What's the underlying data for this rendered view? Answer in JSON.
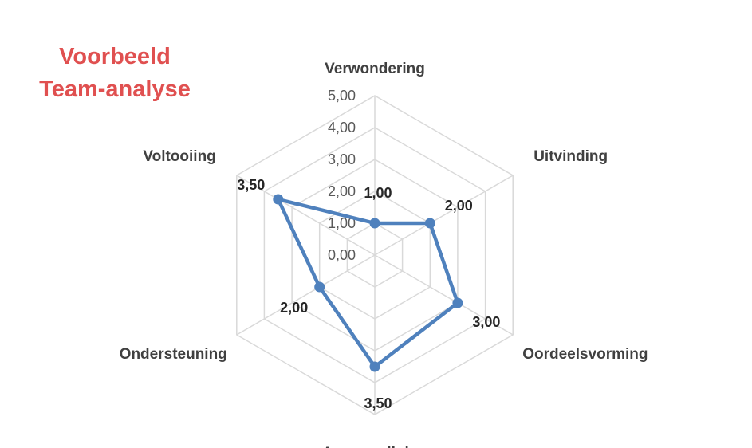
{
  "page": {
    "title_lines": [
      "Voorbeeld",
      "Team-analyse"
    ],
    "title_color": "#e05050"
  },
  "chart_data": {
    "type": "radar",
    "categories": [
      "Verwondering",
      "Uitvinding",
      "Oordeelsvorming",
      "Aanmoediging",
      "Ondersteuning",
      "Voltooiing"
    ],
    "series": [
      {
        "values": [
          1.0,
          2.0,
          3.0,
          3.5,
          2.0,
          3.5
        ],
        "color": "#4f81bd"
      }
    ],
    "data_labels": [
      "1,00",
      "2,00",
      "3,00",
      "3,50",
      "2,00",
      "3,50"
    ],
    "rlim": [
      0,
      5
    ],
    "ticks": [
      0,
      1,
      2,
      3,
      4,
      5
    ],
    "tick_labels": [
      "0,00",
      "1,00",
      "2,00",
      "3,00",
      "4,00",
      "5,00"
    ],
    "grid": true,
    "grid_color": "#d9d9d9"
  }
}
